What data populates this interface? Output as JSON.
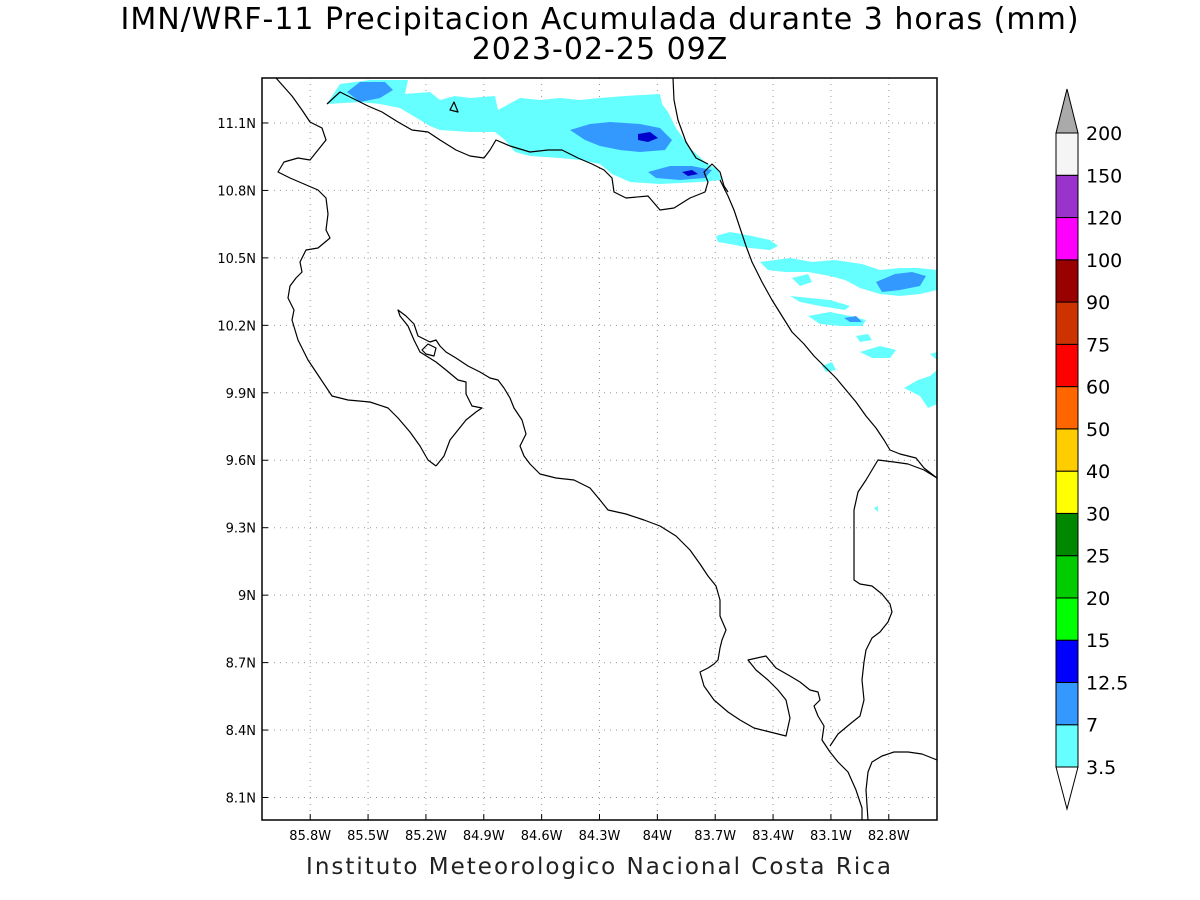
{
  "title": "IMN/WRF-11 Precipitacion Acumulada durante 3 horas (mm)",
  "subtitle": "2023-02-25 09Z",
  "footer": "Instituto Meteorologico Nacional Costa Rica",
  "map": {
    "lon_range": [
      -86.05,
      -82.55
    ],
    "lat_range": [
      8.0,
      11.3
    ],
    "lon_ticks": [
      "85.8W",
      "85.5W",
      "85.2W",
      "84.9W",
      "84.6W",
      "84.3W",
      "84W",
      "83.7W",
      "83.4W",
      "83.1W",
      "82.8W"
    ],
    "lon_tick_values": [
      -85.8,
      -85.5,
      -85.2,
      -84.9,
      -84.6,
      -84.3,
      -84.0,
      -83.7,
      -83.4,
      -83.1,
      -82.8
    ],
    "lat_ticks": [
      "11.1N",
      "10.8N",
      "10.5N",
      "10.2N",
      "9.9N",
      "9.6N",
      "9.3N",
      "9N",
      "8.7N",
      "8.4N",
      "8.1N"
    ],
    "lat_tick_values": [
      11.1,
      10.8,
      10.5,
      10.2,
      9.9,
      9.6,
      9.3,
      9.0,
      8.7,
      8.4,
      8.1
    ],
    "grid": "dotted",
    "coast_color": "#000000"
  },
  "legend": {
    "placement": "right",
    "labels": [
      "200",
      "150",
      "120",
      "100",
      "90",
      "75",
      "60",
      "50",
      "40",
      "30",
      "25",
      "20",
      "15",
      "12.5",
      "7",
      "3.5"
    ],
    "colors_bottom_to_top": [
      "#66ffff",
      "#3399ff",
      "#0000ff",
      "#00ff00",
      "#00cc00",
      "#008800",
      "#ffff00",
      "#ffcc00",
      "#ff6600",
      "#ff0000",
      "#cc3300",
      "#990000",
      "#ff00ff",
      "#9933cc",
      "#f5f5f5"
    ],
    "top_arrow_color": "#aaaaaa",
    "bottom_arrow_color": "#ffffff"
  },
  "precip_colors": {
    "light": "#66ffff",
    "medium": "#3399ff",
    "heavy": "#0000cc"
  }
}
